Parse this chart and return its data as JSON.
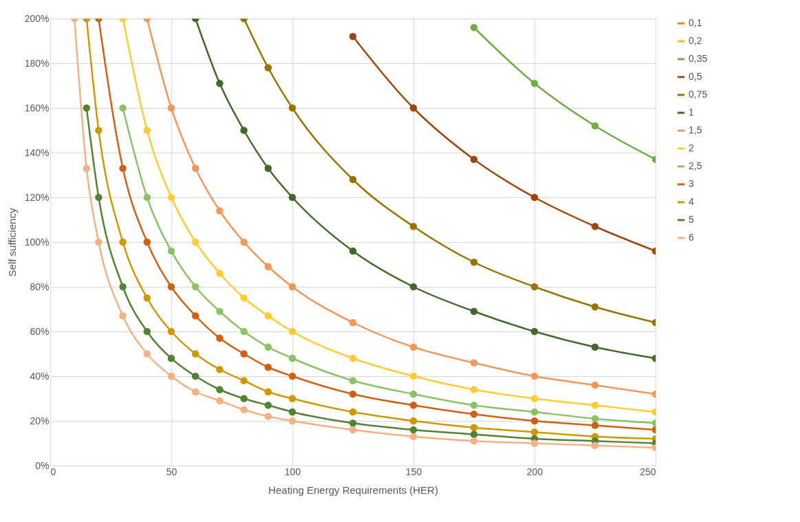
{
  "chart_data": {
    "type": "line",
    "xlabel": "Heating Energy Requirements (HER)",
    "ylabel": "Self sufficiency",
    "x": [
      10,
      15,
      20,
      30,
      40,
      50,
      60,
      70,
      80,
      90,
      100,
      125,
      150,
      175,
      200,
      225,
      250
    ],
    "series": [
      {
        "name": "0,1",
        "color": "#ed7d31",
        "values": [
          null,
          null,
          null,
          null,
          null,
          null,
          null,
          null,
          null,
          null,
          null,
          null,
          null,
          null,
          null,
          null,
          null
        ]
      },
      {
        "name": "0,2",
        "color": "#ffc000",
        "values": [
          null,
          null,
          null,
          null,
          null,
          null,
          null,
          null,
          null,
          null,
          null,
          null,
          null,
          null,
          null,
          null,
          null
        ]
      },
      {
        "name": "0,35",
        "color": "#70ad47",
        "values": [
          null,
          null,
          null,
          null,
          null,
          null,
          null,
          null,
          null,
          null,
          null,
          null,
          null,
          196,
          171,
          152,
          137
        ]
      },
      {
        "name": "0,5",
        "color": "#9e480e",
        "values": [
          null,
          null,
          null,
          null,
          null,
          null,
          null,
          null,
          null,
          null,
          null,
          192,
          160,
          137,
          120,
          107,
          96
        ]
      },
      {
        "name": "0,75",
        "color": "#997300",
        "values": [
          null,
          null,
          null,
          null,
          null,
          null,
          null,
          null,
          200,
          178,
          160,
          128,
          107,
          91,
          80,
          71,
          64
        ]
      },
      {
        "name": "1",
        "color": "#43682b",
        "values": [
          null,
          null,
          null,
          null,
          null,
          null,
          200,
          171,
          150,
          133,
          120,
          96,
          80,
          69,
          60,
          53,
          48
        ]
      },
      {
        "name": "1,5",
        "color": "#f1975a",
        "values": [
          null,
          null,
          null,
          null,
          200,
          160,
          133,
          114,
          100,
          89,
          80,
          64,
          53,
          46,
          40,
          36,
          32
        ]
      },
      {
        "name": "2",
        "color": "#ffcd33",
        "values": [
          null,
          null,
          null,
          200,
          150,
          120,
          100,
          86,
          75,
          67,
          60,
          48,
          40,
          34,
          30,
          27,
          24
        ]
      },
      {
        "name": "2,5",
        "color": "#8cc168",
        "values": [
          null,
          null,
          null,
          160,
          120,
          96,
          80,
          69,
          60,
          53,
          48,
          38,
          32,
          27,
          24,
          21,
          19
        ]
      },
      {
        "name": "3",
        "color": "#d26012",
        "values": [
          null,
          null,
          200,
          133,
          100,
          80,
          67,
          57,
          50,
          44,
          40,
          32,
          27,
          23,
          20,
          18,
          16
        ]
      },
      {
        "name": "4",
        "color": "#cc9a00",
        "values": [
          null,
          200,
          150,
          100,
          75,
          60,
          50,
          43,
          38,
          33,
          30,
          24,
          20,
          17,
          15,
          13,
          12
        ]
      },
      {
        "name": "5",
        "color": "#548235",
        "values": [
          null,
          160,
          120,
          80,
          60,
          48,
          40,
          34,
          30,
          27,
          24,
          19,
          16,
          14,
          12,
          11,
          10
        ]
      },
      {
        "name": "6",
        "color": "#f4b183",
        "values": [
          200,
          133,
          100,
          67,
          50,
          40,
          33,
          29,
          25,
          22,
          20,
          16,
          13,
          11,
          10,
          9,
          8
        ]
      }
    ],
    "xlim": [
      0,
      250
    ],
    "xticks": [
      0,
      50,
      100,
      150,
      200,
      250
    ],
    "ylim": [
      0,
      200
    ],
    "yticks": [
      {
        "value": 0,
        "label": "0%"
      },
      {
        "value": 20,
        "label": "20%"
      },
      {
        "value": 40,
        "label": "40%"
      },
      {
        "value": 60,
        "label": "60%"
      },
      {
        "value": 80,
        "label": "80%"
      },
      {
        "value": 100,
        "label": "100%"
      },
      {
        "value": 120,
        "label": "120%"
      },
      {
        "value": 140,
        "label": "140%"
      },
      {
        "value": 160,
        "label": "160%"
      },
      {
        "value": 180,
        "label": "180%"
      },
      {
        "value": 200,
        "label": "200%"
      }
    ],
    "grid": true,
    "legend": "right",
    "marker": "circle",
    "line_style": "solid"
  }
}
